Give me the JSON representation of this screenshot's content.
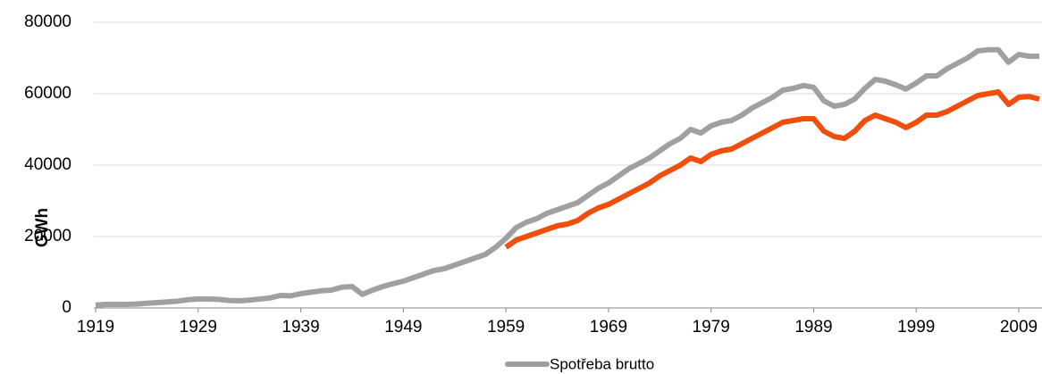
{
  "chart_data": {
    "type": "line",
    "ylabel": "GWh",
    "x": [
      1919,
      1920,
      1921,
      1922,
      1923,
      1924,
      1925,
      1926,
      1927,
      1928,
      1929,
      1930,
      1931,
      1932,
      1933,
      1934,
      1935,
      1936,
      1937,
      1938,
      1939,
      1940,
      1941,
      1942,
      1943,
      1944,
      1945,
      1946,
      1947,
      1948,
      1949,
      1950,
      1951,
      1952,
      1953,
      1954,
      1955,
      1956,
      1957,
      1958,
      1959,
      1960,
      1961,
      1962,
      1963,
      1964,
      1965,
      1966,
      1967,
      1968,
      1969,
      1970,
      1971,
      1972,
      1973,
      1974,
      1975,
      1976,
      1977,
      1978,
      1979,
      1980,
      1981,
      1982,
      1983,
      1984,
      1985,
      1986,
      1987,
      1988,
      1989,
      1990,
      1991,
      1992,
      1993,
      1994,
      1995,
      1996,
      1997,
      1998,
      1999,
      2000,
      2001,
      2002,
      2003,
      2004,
      2005,
      2006,
      2007,
      2008,
      2009,
      2010,
      2011
    ],
    "series": [
      {
        "name": "Spotřeba brutto",
        "color": "#a0a0a0",
        "values": [
          800,
          1000,
          1000,
          1000,
          1100,
          1300,
          1500,
          1700,
          1900,
          2300,
          2500,
          2500,
          2400,
          2100,
          2000,
          2200,
          2500,
          2800,
          3500,
          3400,
          4000,
          4400,
          4800,
          5000,
          5800,
          6000,
          3800,
          5000,
          6000,
          6800,
          7500,
          8500,
          9500,
          10500,
          11000,
          12000,
          13000,
          14000,
          15000,
          17000,
          19500,
          22500,
          24000,
          25000,
          26500,
          27500,
          28500,
          29500,
          31500,
          33500,
          35000,
          37000,
          39000,
          40500,
          42000,
          44000,
          46000,
          47500,
          50000,
          49000,
          51000,
          52000,
          52500,
          54000,
          56000,
          57500,
          59000,
          61000,
          61500,
          62300,
          61800,
          58000,
          56500,
          57000,
          58500,
          61500,
          64000,
          63500,
          62500,
          61300,
          63000,
          65000,
          65000,
          67000,
          68500,
          70000,
          72000,
          72300,
          72300,
          68800,
          71000,
          70500,
          70500
        ]
      },
      {
        "color": "#f04e0c",
        "values": [
          null,
          null,
          null,
          null,
          null,
          null,
          null,
          null,
          null,
          null,
          null,
          null,
          null,
          null,
          null,
          null,
          null,
          null,
          null,
          null,
          null,
          null,
          null,
          null,
          null,
          null,
          null,
          null,
          null,
          null,
          null,
          null,
          null,
          null,
          null,
          null,
          null,
          null,
          null,
          null,
          17000,
          19000,
          20000,
          21000,
          22000,
          23000,
          23500,
          24500,
          26500,
          28000,
          29000,
          30500,
          32000,
          33500,
          35000,
          37000,
          38500,
          40000,
          42000,
          41000,
          43000,
          44000,
          44500,
          46000,
          47500,
          49000,
          50500,
          52000,
          52500,
          53000,
          53000,
          49500,
          48000,
          47500,
          49500,
          52500,
          54000,
          53000,
          52000,
          50500,
          52000,
          54000,
          54000,
          55000,
          56500,
          58000,
          59500,
          60000,
          60500,
          57000,
          59000,
          59200,
          58500
        ]
      }
    ],
    "xlim": [
      1919,
      2011
    ],
    "xticks": [
      1919,
      1929,
      1939,
      1949,
      1959,
      1969,
      1979,
      1989,
      1999,
      2009
    ],
    "ylim": [
      0,
      80000
    ],
    "yticks": [
      0,
      20000,
      40000,
      60000,
      80000
    ],
    "grid": true,
    "legend": "bottom"
  }
}
